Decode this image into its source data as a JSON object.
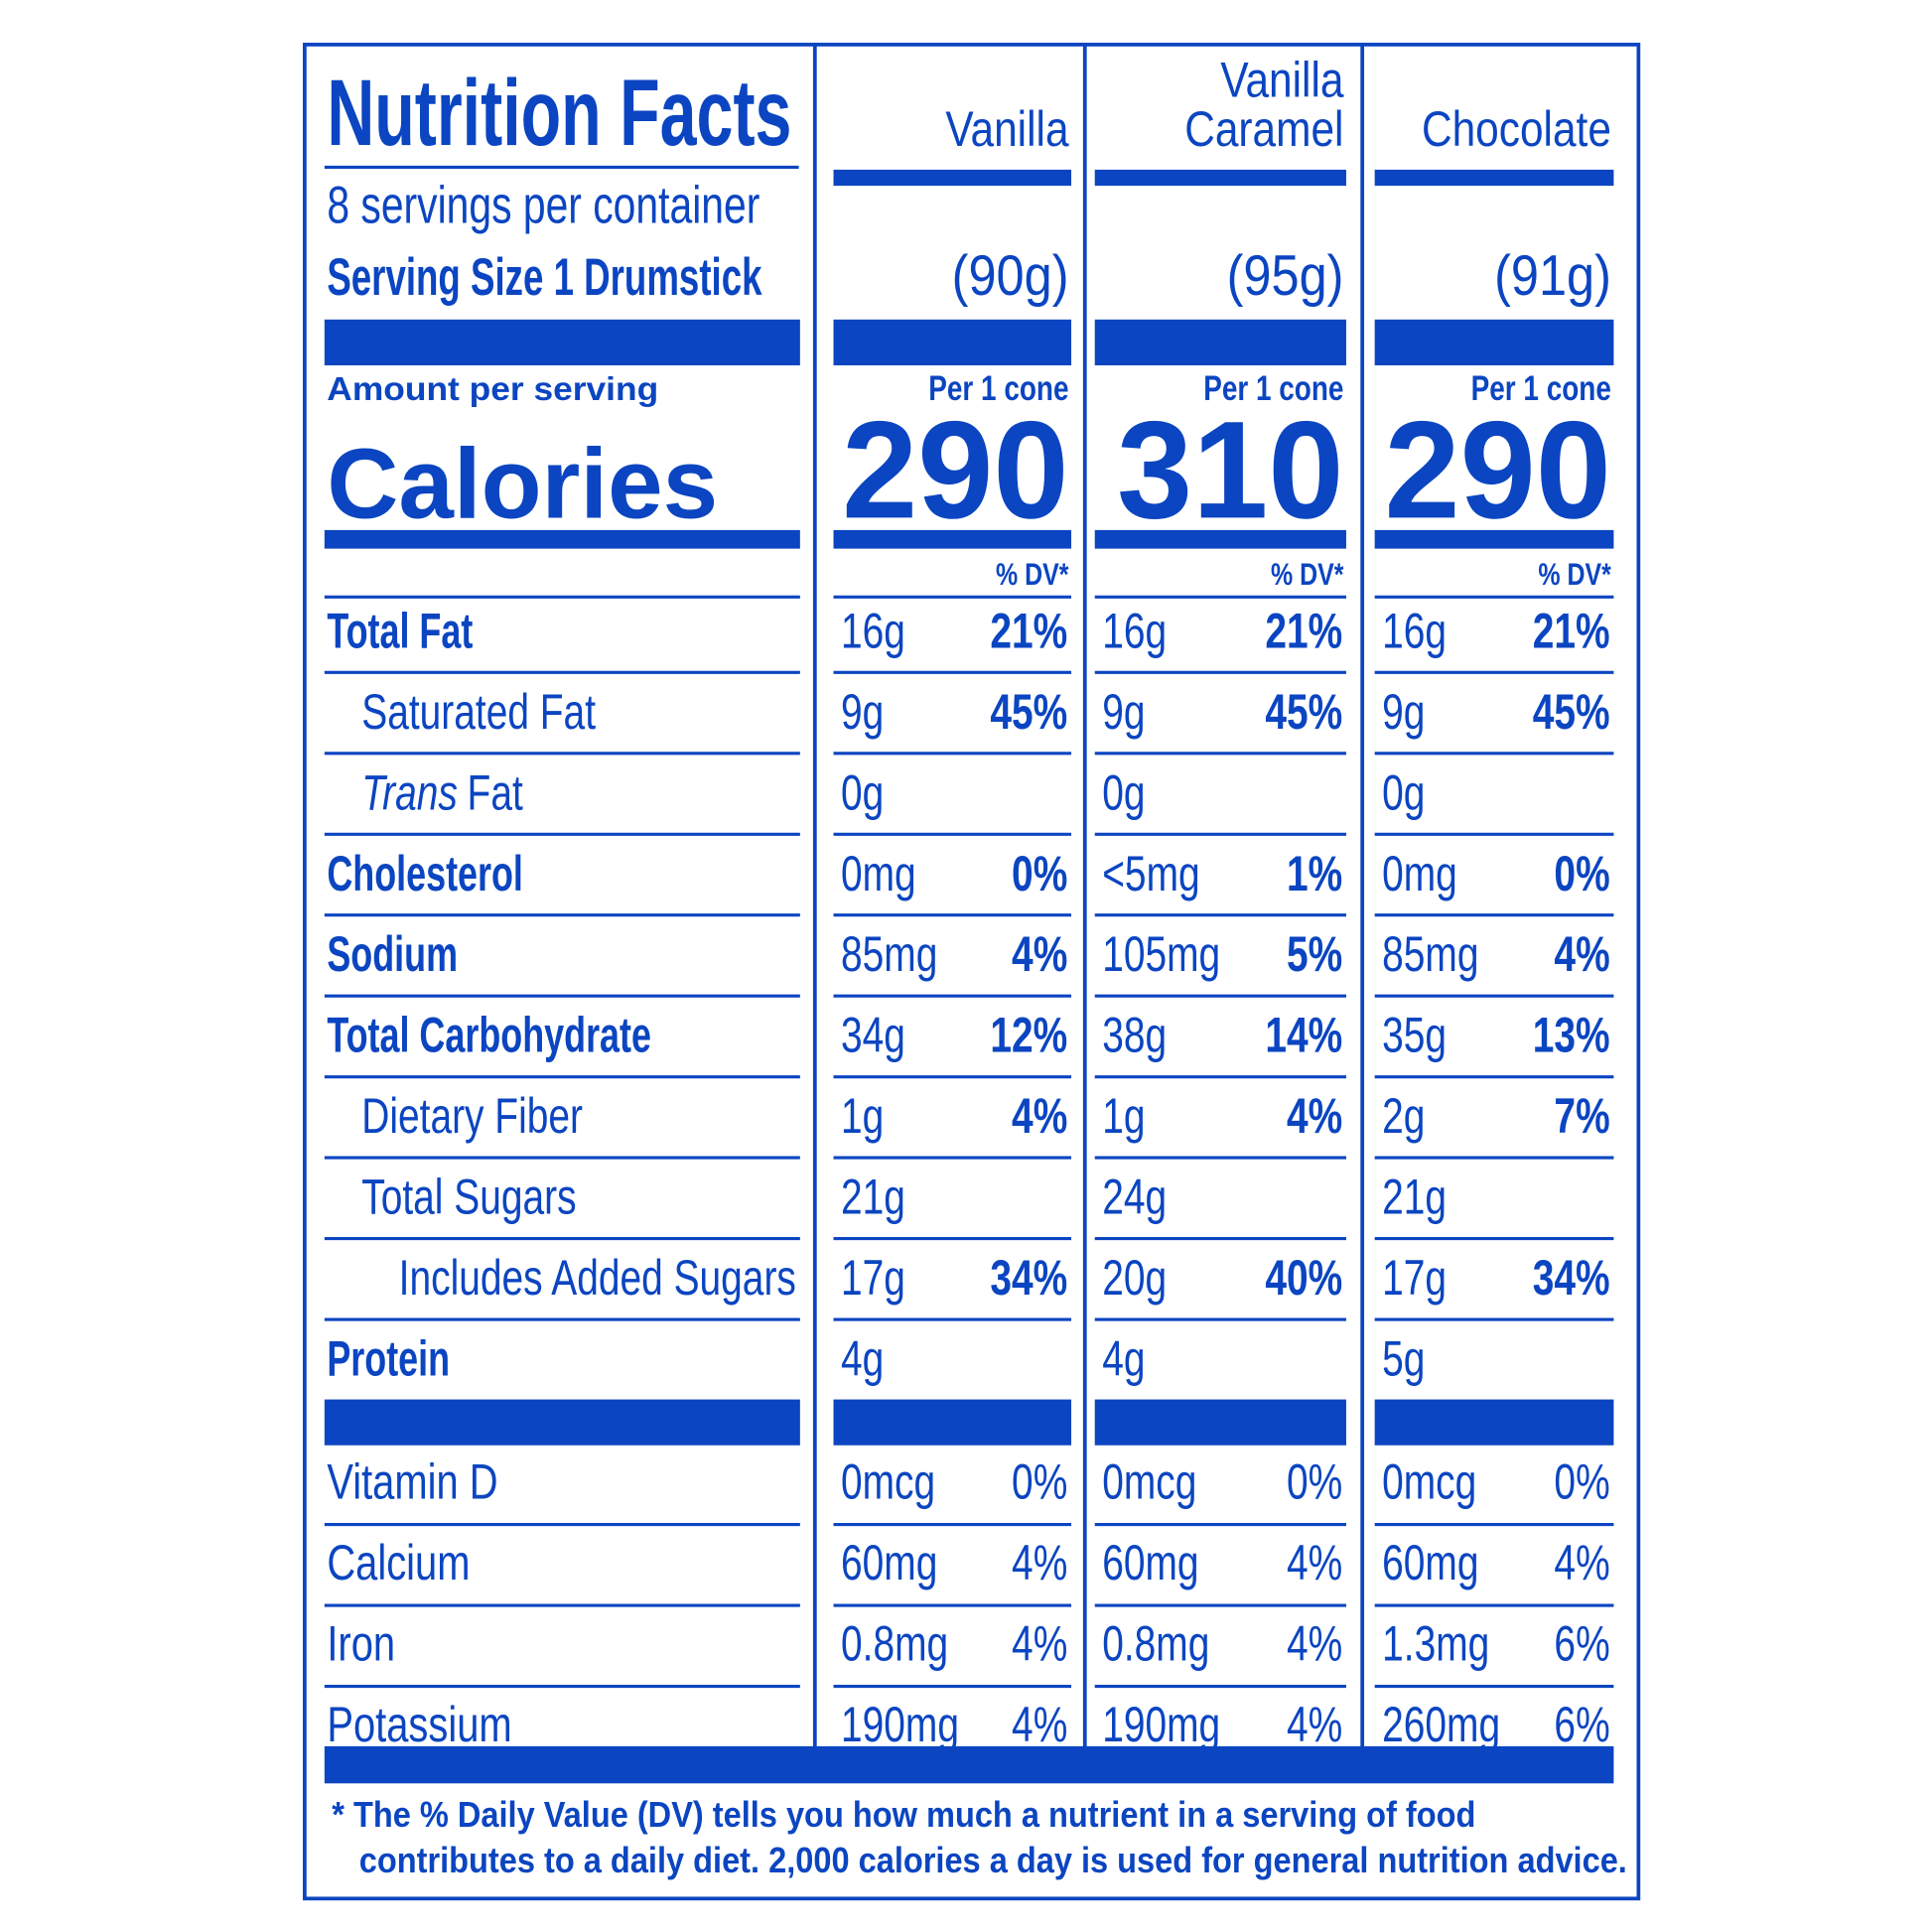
{
  "header": {
    "title": "Nutrition Facts",
    "servings": "8 servings per container",
    "serving_size": "Serving Size 1 Drumstick",
    "amount_per_serving": "Amount per serving",
    "calories_label": "Calories"
  },
  "columns": [
    {
      "name_lines": [
        "Vanilla"
      ],
      "serving": "(90g)",
      "per": "Per 1 cone",
      "calories": 290,
      "dv_header": "% DV*"
    },
    {
      "name_lines": [
        "Vanilla",
        "Caramel"
      ],
      "serving": "(95g)",
      "per": "Per 1 cone",
      "calories": 310,
      "dv_header": "% DV*"
    },
    {
      "name_lines": [
        "Chocolate"
      ],
      "serving": "(91g)",
      "per": "Per 1 cone",
      "calories": 290,
      "dv_header": "% DV*"
    }
  ],
  "nutrients": [
    {
      "label": "Total Fat",
      "bold": true,
      "level": 0,
      "cells": [
        [
          "16g",
          "21%"
        ],
        [
          "16g",
          "21%"
        ],
        [
          "16g",
          "21%"
        ]
      ]
    },
    {
      "label": "Saturated Fat",
      "bold": false,
      "level": 1,
      "cells": [
        [
          "9g",
          "45%"
        ],
        [
          "9g",
          "45%"
        ],
        [
          "9g",
          "45%"
        ]
      ]
    },
    {
      "label_italic": "Trans",
      "label": "Fat",
      "bold": false,
      "level": 1,
      "cells": [
        [
          "0g"
        ],
        [
          "0g"
        ],
        [
          "0g"
        ]
      ]
    },
    {
      "label": "Cholesterol",
      "bold": true,
      "level": 0,
      "cells": [
        [
          "0mg",
          "0%"
        ],
        [
          "<5mg",
          "1%"
        ],
        [
          "0mg",
          "0%"
        ]
      ]
    },
    {
      "label": "Sodium",
      "bold": true,
      "level": 0,
      "cells": [
        [
          "85mg",
          "4%"
        ],
        [
          "105mg",
          "5%"
        ],
        [
          "85mg",
          "4%"
        ]
      ]
    },
    {
      "label": "Total Carbohydrate",
      "bold": true,
      "level": 0,
      "cells": [
        [
          "34g",
          "12%"
        ],
        [
          "38g",
          "14%"
        ],
        [
          "35g",
          "13%"
        ]
      ]
    },
    {
      "label": "Dietary Fiber",
      "bold": false,
      "level": 1,
      "cells": [
        [
          "1g",
          "4%"
        ],
        [
          "1g",
          "4%"
        ],
        [
          "2g",
          "7%"
        ]
      ]
    },
    {
      "label": "Total Sugars",
      "bold": false,
      "level": 1,
      "cells": [
        [
          "21g"
        ],
        [
          "24g"
        ],
        [
          "21g"
        ]
      ]
    },
    {
      "label": "Includes Added Sugars",
      "bold": false,
      "level": 2,
      "cells": [
        [
          "17g",
          "34%"
        ],
        [
          "20g",
          "40%"
        ],
        [
          "17g",
          "34%"
        ]
      ]
    },
    {
      "label": "Protein",
      "bold": true,
      "level": 0,
      "cells": [
        [
          "4g"
        ],
        [
          "4g"
        ],
        [
          "5g"
        ]
      ]
    }
  ],
  "vitamins": [
    {
      "label": "Vitamin D",
      "cells": [
        [
          "0mcg",
          "0%"
        ],
        [
          "0mcg",
          "0%"
        ],
        [
          "0mcg",
          "0%"
        ]
      ]
    },
    {
      "label": "Calcium",
      "cells": [
        [
          "60mg",
          "4%"
        ],
        [
          "60mg",
          "4%"
        ],
        [
          "60mg",
          "4%"
        ]
      ]
    },
    {
      "label": "Iron",
      "cells": [
        [
          "0.8mg",
          "4%"
        ],
        [
          "0.8mg",
          "4%"
        ],
        [
          "1.3mg",
          "6%"
        ]
      ]
    },
    {
      "label": "Potassium",
      "cells": [
        [
          "190mg",
          "4%"
        ],
        [
          "190mg",
          "4%"
        ],
        [
          "260mg",
          "6%"
        ]
      ]
    }
  ],
  "footnote": [
    "* The % Daily Value (DV) tells you how much a nutrient in a serving of food",
    "contributes to a daily diet. 2,000 calories a day is used for general nutrition advice."
  ]
}
